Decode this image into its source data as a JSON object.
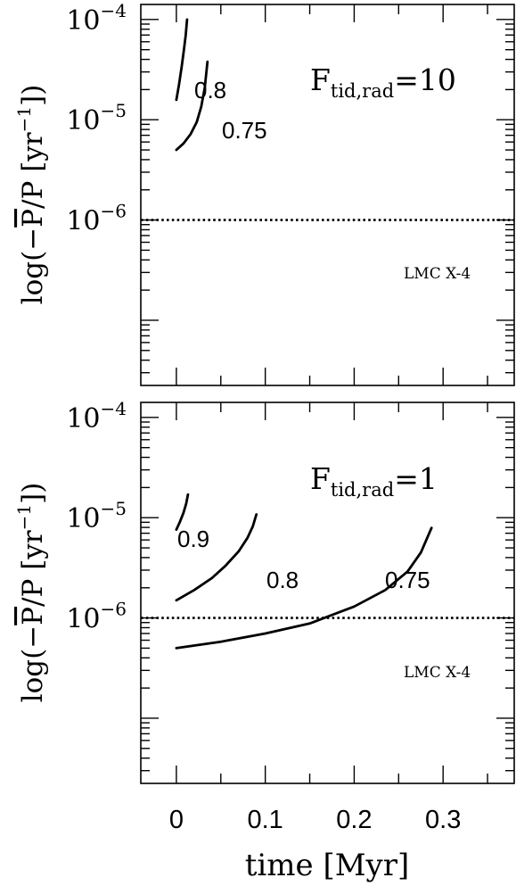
{
  "figure": {
    "x_tick_labels": [
      "0",
      "0.1",
      "0.2",
      "0.3"
    ],
    "x_axis_label": "time [Myr]"
  },
  "chart_data": [
    {
      "type": "line",
      "panel": "top",
      "y_axis_label_parts": [
        "log(−",
        "P",
        "/P [yr",
        "−1",
        "])"
      ],
      "annotation_parts": [
        "F",
        "tid,rad",
        "=10"
      ],
      "x_range": [
        -0.04,
        0.38
      ],
      "y_range_log10": [
        -7.65,
        -3.85
      ],
      "y_scale": "log",
      "y_tick_labels": [
        {
          "base": "10",
          "exp": "−4",
          "value": -4
        },
        {
          "base": "10",
          "exp": "−5",
          "value": -5
        },
        {
          "base": "10",
          "exp": "−6",
          "value": -6
        }
      ],
      "reference_line": {
        "label": "LMC X-4",
        "y": 1e-06,
        "style": "dotted"
      },
      "series": [
        {
          "label": "0.8",
          "points": [
            [
              0,
              1.58e-05
            ],
            [
              0.003,
              2.25e-05
            ],
            [
              0.006,
              3.4e-05
            ],
            [
              0.0085,
              5e-05
            ],
            [
              0.0105,
              7e-05
            ],
            [
              0.012,
              0.0001
            ]
          ]
        },
        {
          "label": "0.75",
          "points": [
            [
              0,
              5e-06
            ],
            [
              0.008,
              5.8e-06
            ],
            [
              0.016,
              7.2e-06
            ],
            [
              0.023,
              9.5e-06
            ],
            [
              0.028,
              1.35e-05
            ],
            [
              0.032,
              2.1e-05
            ],
            [
              0.035,
              3.8e-05
            ]
          ]
        }
      ]
    },
    {
      "type": "line",
      "panel": "bottom",
      "y_axis_label_parts": [
        "log(−",
        "P",
        "/P [yr",
        "−1",
        "])"
      ],
      "annotation_parts": [
        "F",
        "tid,rad",
        "=1"
      ],
      "x_range": [
        -0.04,
        0.38
      ],
      "y_range_log10": [
        -7.65,
        -3.85
      ],
      "y_scale": "log",
      "y_tick_labels": [
        {
          "base": "10",
          "exp": "−4",
          "value": -4
        },
        {
          "base": "10",
          "exp": "−5",
          "value": -5
        },
        {
          "base": "10",
          "exp": "−6",
          "value": -6
        }
      ],
      "reference_line": {
        "label": "LMC X-4",
        "y": 1e-06,
        "style": "dotted"
      },
      "series": [
        {
          "label": "0.9",
          "points": [
            [
              0,
              7.6e-06
            ],
            [
              0.004,
              9.1e-06
            ],
            [
              0.008,
              1.12e-05
            ],
            [
              0.011,
              1.38e-05
            ],
            [
              0.013,
              1.7e-05
            ]
          ]
        },
        {
          "label": "0.8",
          "points": [
            [
              0,
              1.5e-06
            ],
            [
              0.02,
              1.9e-06
            ],
            [
              0.04,
              2.5e-06
            ],
            [
              0.055,
              3.3e-06
            ],
            [
              0.07,
              4.6e-06
            ],
            [
              0.08,
              6.3e-06
            ],
            [
              0.086,
              8.2e-06
            ],
            [
              0.09,
              1.08e-05
            ]
          ]
        },
        {
          "label": "0.75",
          "points": [
            [
              0,
              5e-07
            ],
            [
              0.05,
              5.8e-07
            ],
            [
              0.1,
              7e-07
            ],
            [
              0.15,
              8.8e-07
            ],
            [
              0.2,
              1.3e-06
            ],
            [
              0.235,
              1.9e-06
            ],
            [
              0.26,
              2.9e-06
            ],
            [
              0.275,
              4.5e-06
            ],
            [
              0.287,
              7.9e-06
            ]
          ]
        }
      ]
    }
  ]
}
